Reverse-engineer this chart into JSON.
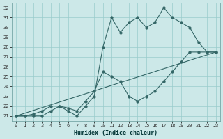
{
  "xlabel": "Humidex (Indice chaleur)",
  "bg_color": "#cce8e8",
  "grid_color": "#99cccc",
  "line_color": "#336666",
  "xlim": [
    -0.5,
    23.5
  ],
  "ylim": [
    20.5,
    32.5
  ],
  "xticks": [
    0,
    1,
    2,
    3,
    4,
    5,
    6,
    7,
    8,
    9,
    10,
    11,
    12,
    13,
    14,
    15,
    16,
    17,
    18,
    19,
    20,
    21,
    22,
    23
  ],
  "yticks": [
    21,
    22,
    23,
    24,
    25,
    26,
    27,
    28,
    29,
    30,
    31,
    32
  ],
  "line1_x": [
    0,
    1,
    2,
    3,
    4,
    5,
    6,
    7,
    8,
    9,
    10,
    11,
    12,
    13,
    14,
    15,
    16,
    17,
    18,
    19,
    20,
    21,
    22,
    23
  ],
  "line1_y": [
    21.0,
    21.0,
    21.0,
    21.0,
    21.5,
    22.0,
    21.5,
    21.0,
    22.0,
    23.0,
    28.0,
    31.0,
    29.5,
    30.5,
    31.0,
    30.0,
    30.5,
    32.0,
    31.0,
    30.5,
    30.0,
    28.5,
    27.5,
    27.5
  ],
  "line2_x": [
    0,
    1,
    2,
    3,
    4,
    5,
    6,
    7,
    8,
    9,
    10,
    11,
    12,
    13,
    14,
    15,
    16,
    17,
    18,
    19,
    20,
    21,
    22,
    23
  ],
  "line2_y": [
    21.0,
    21.0,
    21.2,
    21.5,
    22.0,
    22.0,
    21.8,
    21.5,
    22.5,
    23.5,
    25.5,
    25.0,
    24.5,
    23.0,
    22.5,
    23.0,
    23.5,
    24.5,
    25.5,
    26.5,
    27.5,
    27.5,
    27.5,
    27.5
  ],
  "line3_x": [
    0,
    23
  ],
  "line3_y": [
    21.0,
    27.5
  ]
}
